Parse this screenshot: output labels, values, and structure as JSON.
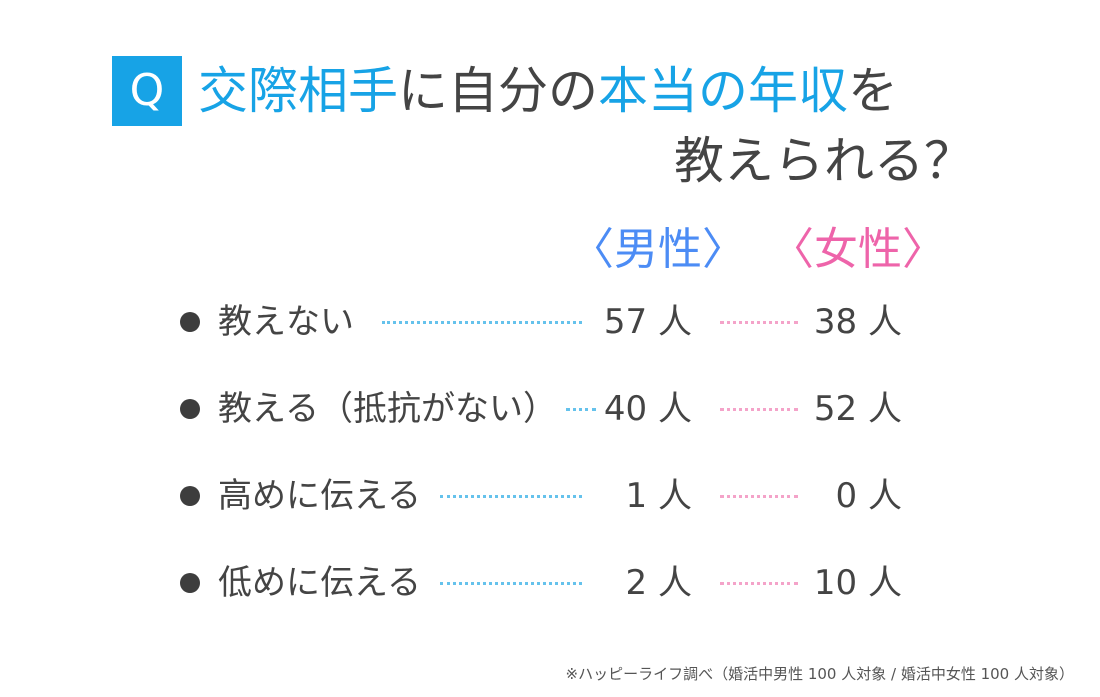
{
  "question": {
    "badge": "Q",
    "line1": [
      {
        "text": "交際相手",
        "hl": true
      },
      {
        "text": "に自分の",
        "hl": false
      },
      {
        "text": "本当の年収",
        "hl": true
      },
      {
        "text": "を",
        "hl": false
      }
    ],
    "line2": "教えられる？"
  },
  "headers": {
    "male": "〈男性〉",
    "female": "〈女性〉"
  },
  "rows": [
    {
      "label": "教えない",
      "male": "57 人",
      "female": "38 人"
    },
    {
      "label": "教える（抵抗がない）",
      "male": "40 人",
      "female": "52 人"
    },
    {
      "label": "高めに伝える",
      "male": "1 人",
      "female": "0 人"
    },
    {
      "label": "低めに伝える",
      "male": "2 人",
      "female": "10 人"
    }
  ],
  "note": "※ハッピーライフ調べ（婚活中男性 100 人対象 / 婚活中女性 100 人対象）",
  "colors": {
    "accent": "#17a3e6",
    "male": "#4c8cf5",
    "female": "#ee64aa",
    "male_dots": "#65c2ec",
    "female_dots": "#f4a3c9"
  },
  "chart_data": {
    "type": "table",
    "categories": [
      "教えない",
      "教える（抵抗がない）",
      "高めに伝える",
      "低めに伝える"
    ],
    "series": [
      {
        "name": "男性",
        "values": [
          57,
          40,
          1,
          2
        ]
      },
      {
        "name": "女性",
        "values": [
          38,
          52,
          0,
          10
        ]
      }
    ]
  }
}
